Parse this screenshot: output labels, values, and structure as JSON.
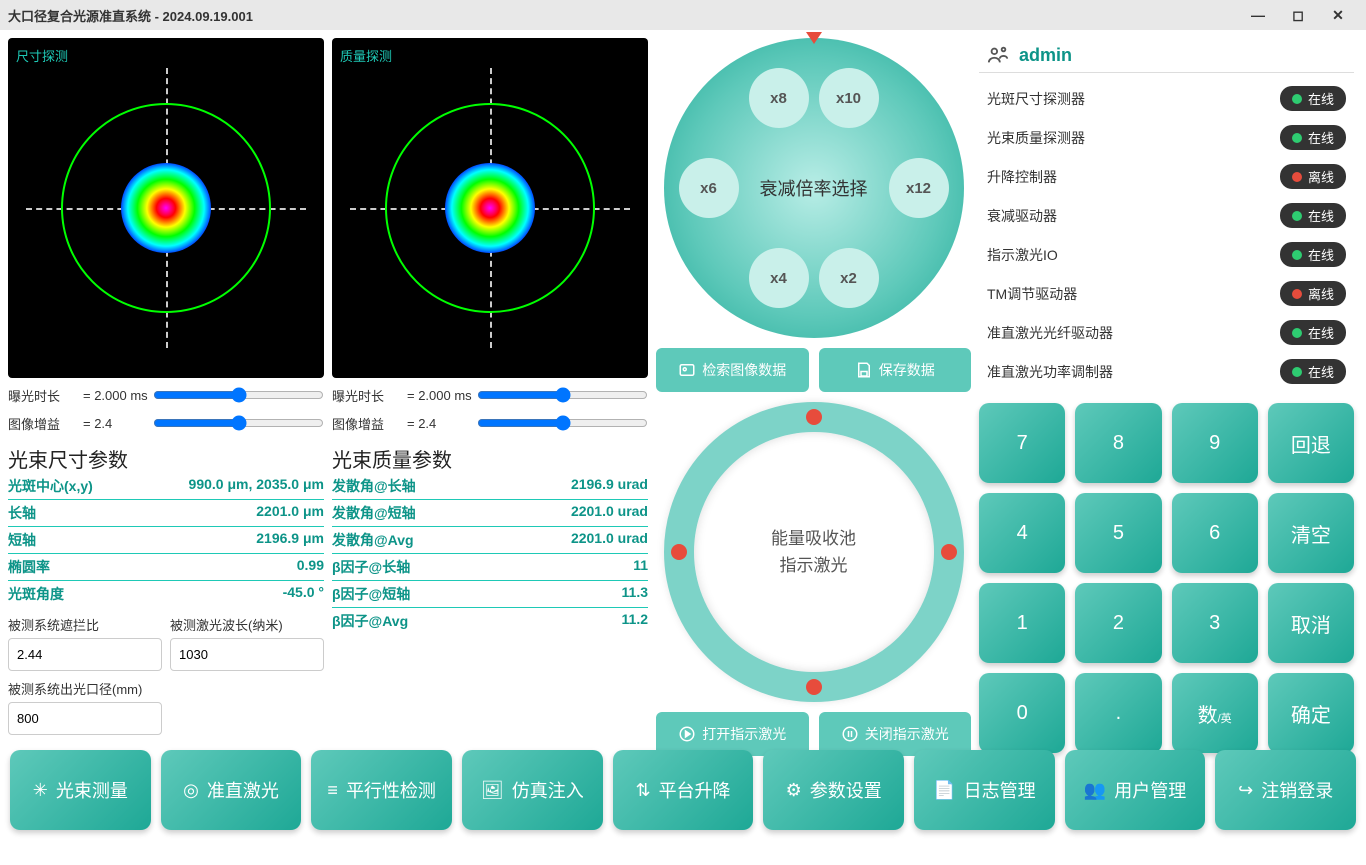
{
  "window": {
    "title": "大口径复合光源准直系统 - 2024.09.19.001"
  },
  "detectors": {
    "size": {
      "label": "尺寸探测",
      "exposure_lbl": "曝光时长",
      "exposure_val": "= 2.000 ms",
      "gain_lbl": "图像增益",
      "gain_val": "= 2.4"
    },
    "quality": {
      "label": "质量探测",
      "exposure_lbl": "曝光时长",
      "exposure_val": "= 2.000 ms",
      "gain_lbl": "图像增益",
      "gain_val": "= 2.4"
    }
  },
  "size_params": {
    "title": "光束尺寸参数",
    "rows": [
      {
        "k": "光斑中心(x,y)",
        "v": "990.0 μm, 2035.0 μm"
      },
      {
        "k": "长轴",
        "v": "2201.0 μm"
      },
      {
        "k": "短轴",
        "v": "2196.9 μm"
      },
      {
        "k": "椭圆率",
        "v": "0.99"
      },
      {
        "k": "光斑角度",
        "v": "-45.0 °"
      }
    ]
  },
  "quality_params": {
    "title": "光束质量参数",
    "rows": [
      {
        "k": "发散角@长轴",
        "v": "2196.9 urad"
      },
      {
        "k": "发散角@短轴",
        "v": "2201.0 urad"
      },
      {
        "k": "发散角@Avg",
        "v": "2201.0 urad"
      },
      {
        "k": "β因子@长轴",
        "v": "11"
      },
      {
        "k": "β因子@短轴",
        "v": "11.3"
      },
      {
        "k": "β因子@Avg",
        "v": "11.2"
      }
    ]
  },
  "inputs": {
    "occlusion": {
      "lbl": "被测系统遮拦比",
      "val": "2.44"
    },
    "wavelength": {
      "lbl": "被测激光波长(纳米)",
      "val": "1030"
    },
    "aperture": {
      "lbl": "被测系统出光口径(mm)",
      "val": "800"
    }
  },
  "attenuation": {
    "title": "衰减倍率选择",
    "options": [
      "x8",
      "x10",
      "x6",
      "x12",
      "x4",
      "x2"
    ]
  },
  "mid_buttons": {
    "search": "检索图像数据",
    "save": "保存数据",
    "open_laser": "打开指示激光",
    "close_laser": "关闭指示激光"
  },
  "energy_pool": {
    "line1": "能量吸收池",
    "line2": "指示激光"
  },
  "user": {
    "name": "admin"
  },
  "devices": [
    {
      "name": "光斑尺寸探测器",
      "status": "在线",
      "online": true
    },
    {
      "name": "光束质量探测器",
      "status": "在线",
      "online": true
    },
    {
      "name": "升降控制器",
      "status": "离线",
      "online": false
    },
    {
      "name": "衰减驱动器",
      "status": "在线",
      "online": true
    },
    {
      "name": "指示激光IO",
      "status": "在线",
      "online": true
    },
    {
      "name": "TM调节驱动器",
      "status": "离线",
      "online": false
    },
    {
      "name": "准直激光光纤驱动器",
      "status": "在线",
      "online": true
    },
    {
      "name": "准直激光功率调制器",
      "status": "在线",
      "online": true
    }
  ],
  "keypad": {
    "rows": [
      [
        "7",
        "8",
        "9",
        "回退"
      ],
      [
        "4",
        "5",
        "6",
        "清空"
      ],
      [
        "1",
        "2",
        "3",
        "取消"
      ],
      [
        "0",
        ".",
        "数/英",
        "确定"
      ]
    ]
  },
  "nav": [
    "光束测量",
    "准直激光",
    "平行性检测",
    "仿真注入",
    "平台升降",
    "参数设置",
    "日志管理",
    "用户管理",
    "注销登录"
  ],
  "colors": {
    "teal": "#1ea896",
    "teal_light": "#5ec9ba",
    "online": "#2ecc71",
    "offline": "#e74c3c"
  }
}
